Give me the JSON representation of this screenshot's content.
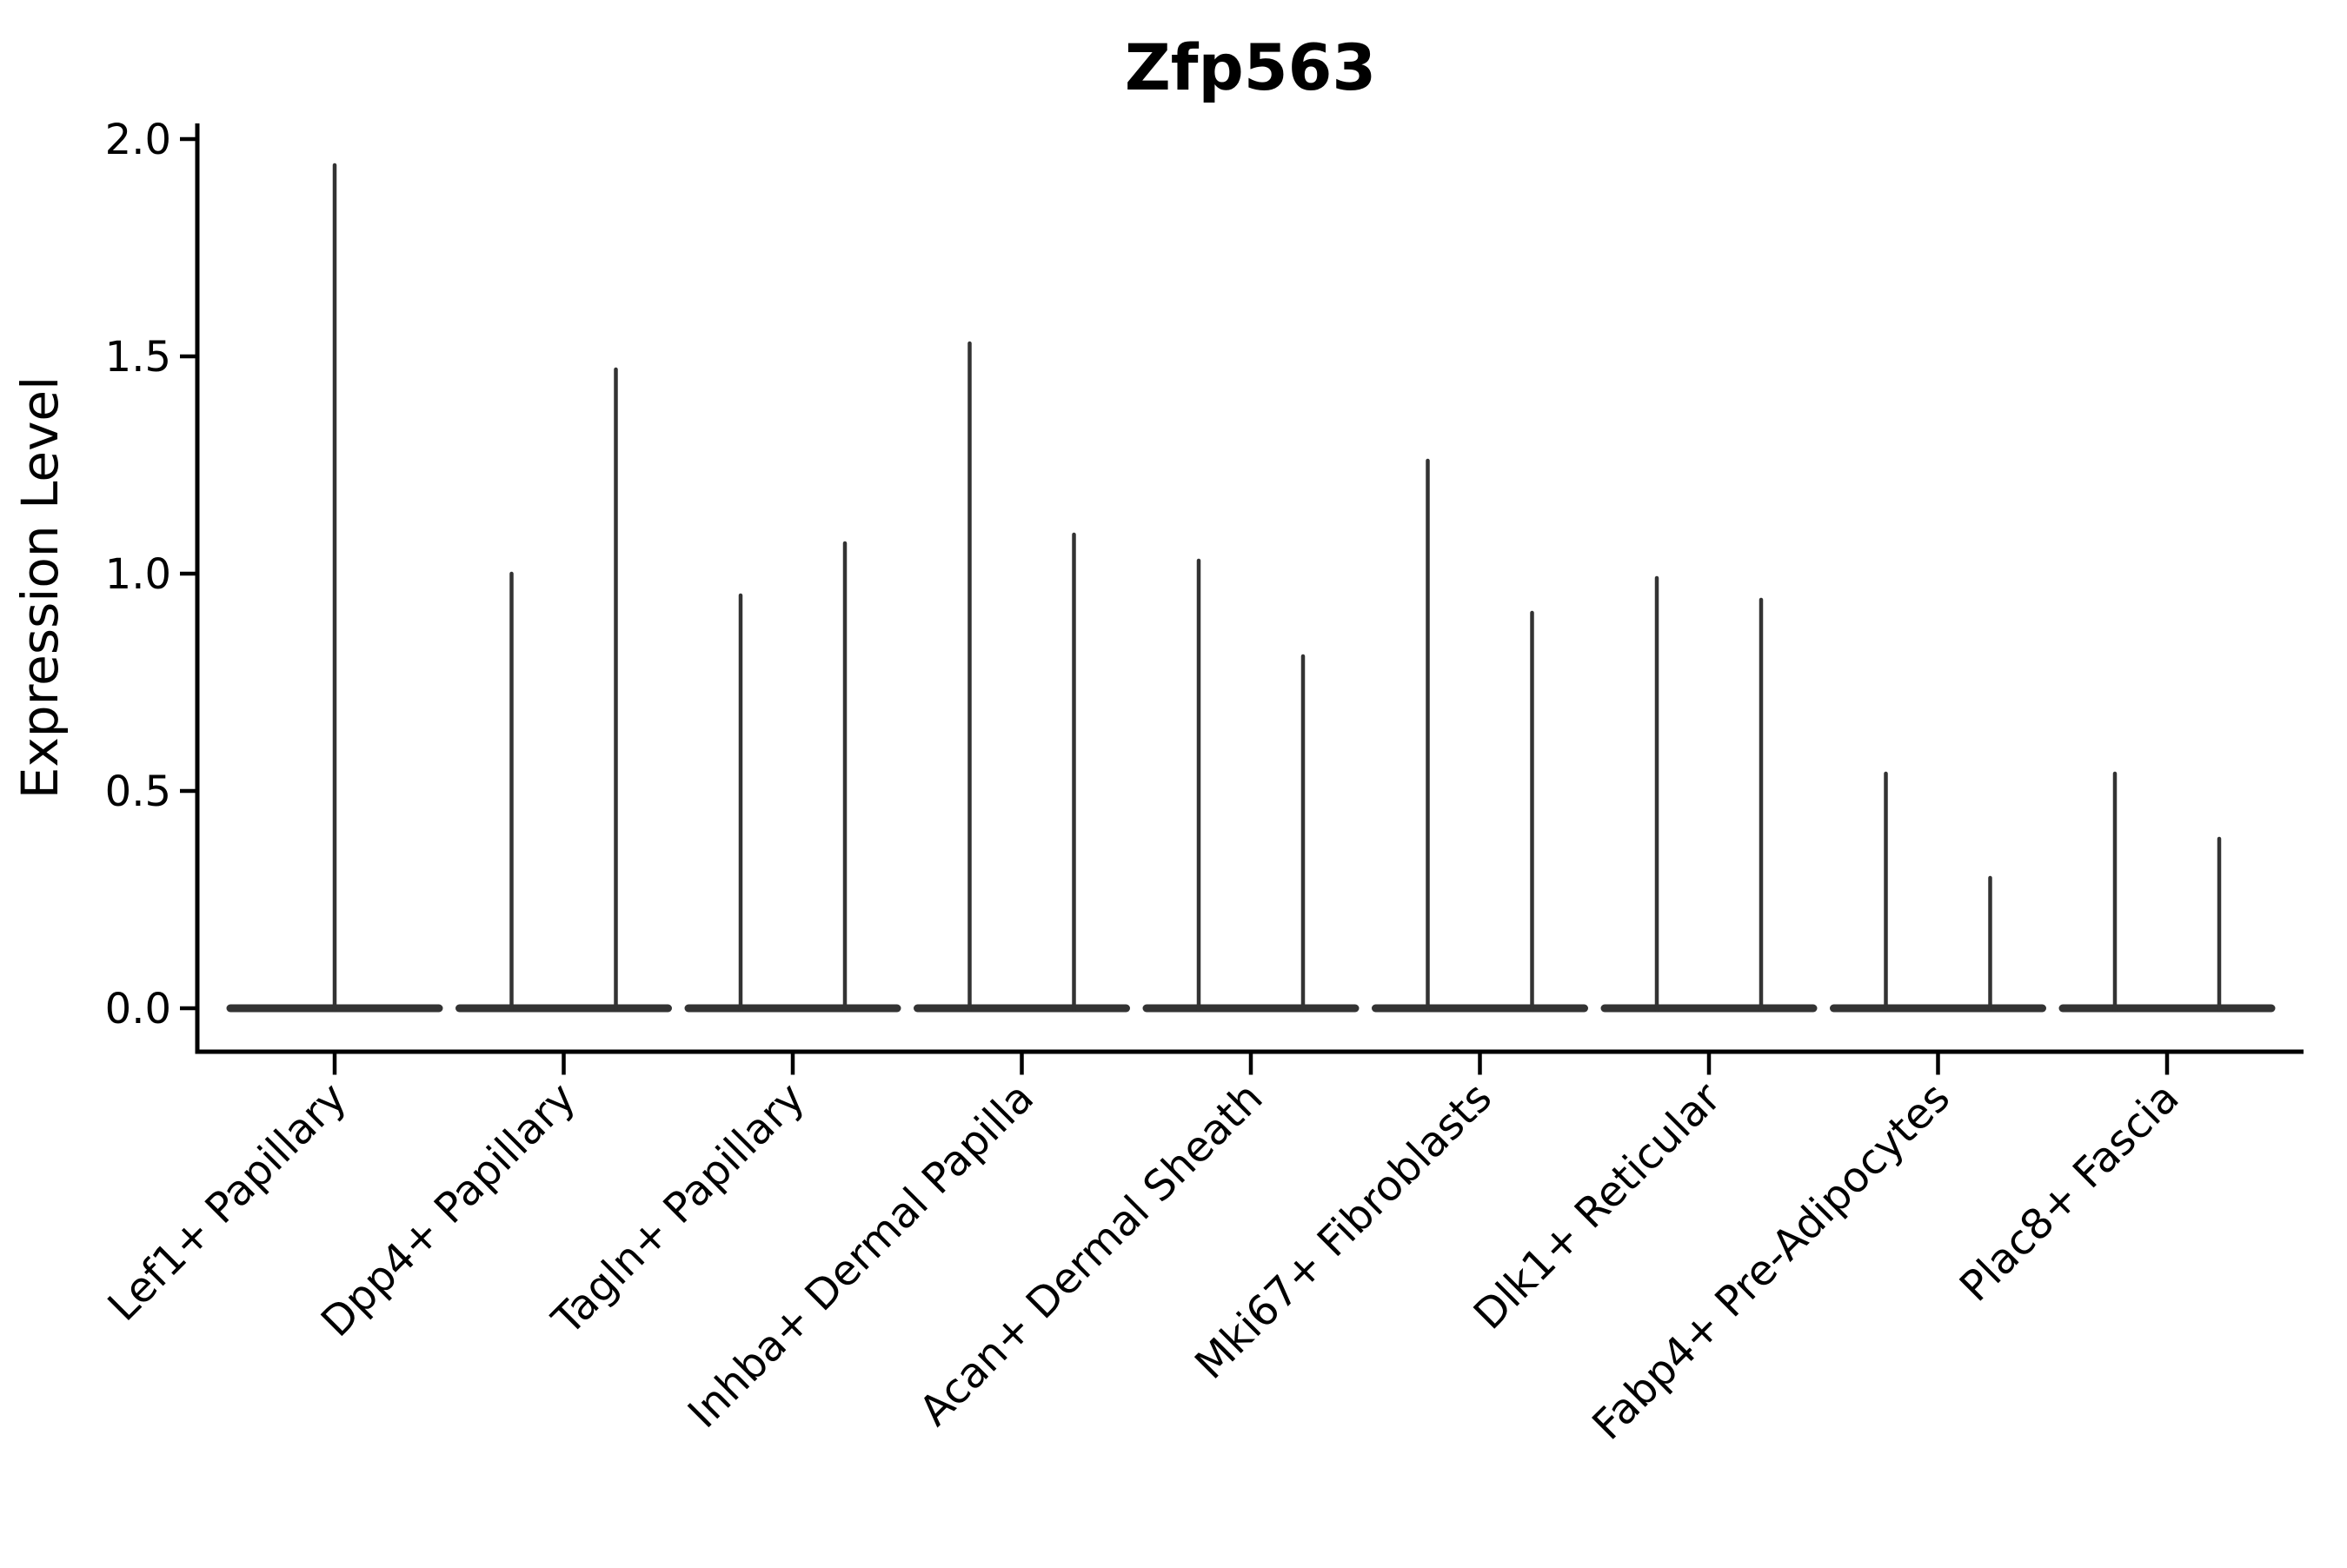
{
  "chart_data": {
    "type": "violin",
    "title": "Zfp563",
    "xlabel": "",
    "ylabel": "Expression Level",
    "ylim": [
      0,
      2.0
    ],
    "ytick_labels": [
      "0.0",
      "0.5",
      "1.0",
      "1.5",
      "2.0"
    ],
    "grid": false,
    "legend": "none",
    "style": "single-cell gene expression violin plot; violins are collapsed to flat bases at 0 with thin vertical spikes reaching each group's maximum expression; 1 violin for the first category, 2 side-by-side violins for all others",
    "violins": [
      {
        "category": "Lef1+ Papillary",
        "spike_values": [
          1.94
        ]
      },
      {
        "category": "Dpp4+ Papillary",
        "spike_values": [
          1.0,
          1.47
        ]
      },
      {
        "category": "Tagln+ Papillary",
        "spike_values": [
          0.95,
          1.07
        ]
      },
      {
        "category": "Inhba+ Dermal Papilla",
        "spike_values": [
          1.53,
          1.09
        ]
      },
      {
        "category": "Acan+ Dermal Sheath",
        "spike_values": [
          1.03,
          0.81
        ]
      },
      {
        "category": "Mki67+ Fibroblasts",
        "spike_values": [
          1.26,
          0.91
        ]
      },
      {
        "category": "Dlk1+ Reticular",
        "spike_values": [
          0.99,
          0.94
        ]
      },
      {
        "category": "Fabp4+ Pre-Adipocytes",
        "spike_values": [
          0.54,
          0.3
        ]
      },
      {
        "category": "Plac8+ Fascia",
        "spike_values": [
          0.54,
          0.39
        ]
      }
    ],
    "colors": {
      "violin_line": "#333333",
      "axis": "#000000",
      "background": "#ffffff"
    }
  }
}
